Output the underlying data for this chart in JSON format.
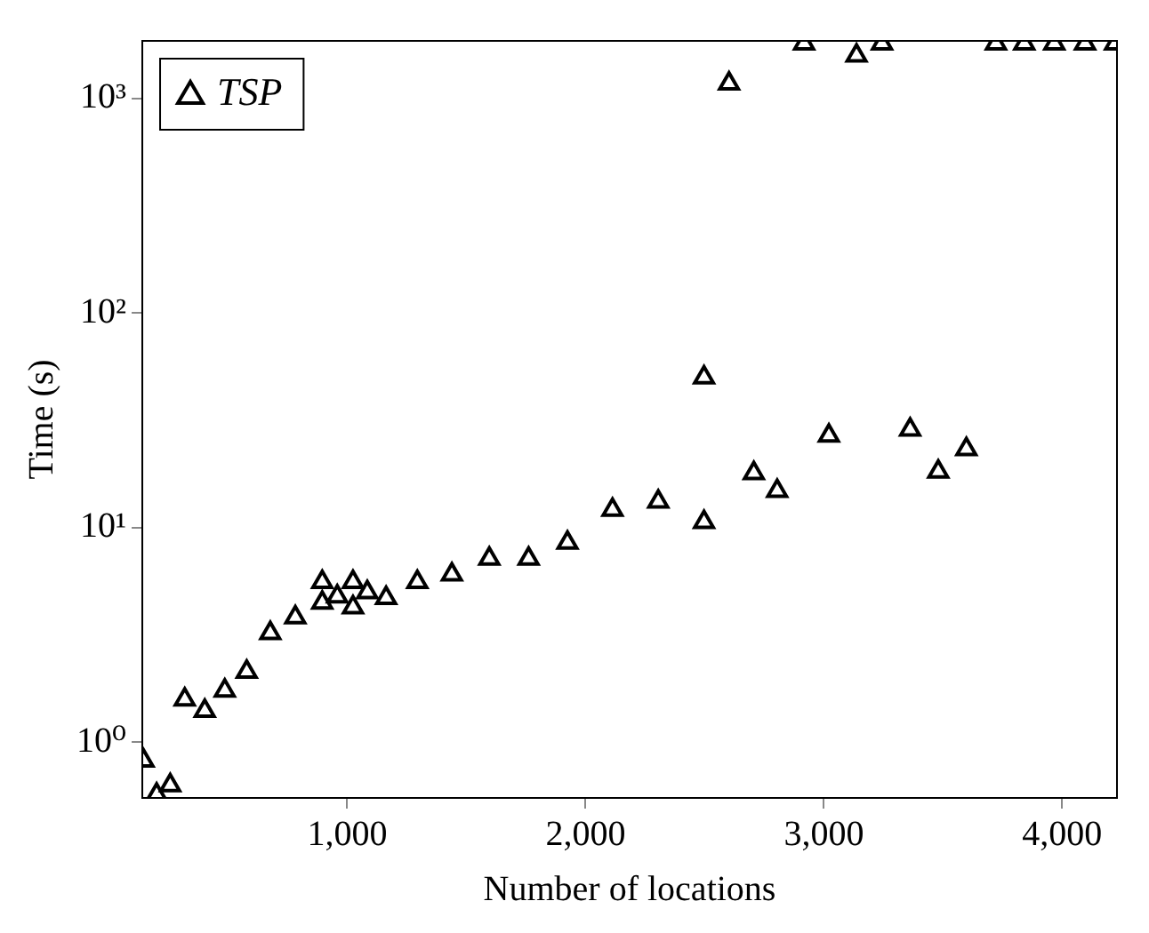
{
  "chart_data": {
    "type": "scatter",
    "xlabel": "Number of locations",
    "ylabel": "Time (s)",
    "series": [
      {
        "name": "TSP",
        "color": "#000000",
        "x": [
          145,
          200,
          257,
          318,
          402,
          486,
          578,
          677,
          782,
          895,
          895,
          958,
          1024,
          1024,
          1084,
          1163,
          1294,
          1439,
          1596,
          1761,
          1924,
          2113,
          2305,
          2497,
          2497,
          2602,
          2706,
          2804,
          2917,
          3021,
          3137,
          3244,
          3362,
          3480,
          3598,
          3722,
          3841,
          3967,
          4096,
          4222
        ],
        "values": [
          0.82,
          0.57,
          0.63,
          1.58,
          1.4,
          1.74,
          2.13,
          3.22,
          3.82,
          5.57,
          4.47,
          4.77,
          5.57,
          4.25,
          5.0,
          4.7,
          5.57,
          6.04,
          7.16,
          7.16,
          8.49,
          12.1,
          13.2,
          10.6,
          50,
          1170,
          17.9,
          14.8,
          1800,
          26.8,
          1580,
          1800,
          28.6,
          18.2,
          23.2,
          1800,
          1800,
          1800,
          1800,
          1800
        ]
      }
    ],
    "xlim": [
      140,
      4230
    ],
    "xticks": [
      {
        "value": 1000,
        "label": "1,000"
      },
      {
        "value": 2000,
        "label": "2,000"
      },
      {
        "value": 3000,
        "label": "3,000"
      },
      {
        "value": 4000,
        "label": "4,000"
      }
    ],
    "ylim": [
      0.55,
      1850
    ],
    "yticks": [
      {
        "value": 1,
        "label": "10⁰"
      },
      {
        "value": 10,
        "label": "10¹"
      },
      {
        "value": 100,
        "label": "10²"
      },
      {
        "value": 1000,
        "label": "10³"
      }
    ],
    "log": "y",
    "grid": false,
    "legend": "top left",
    "marker": "triangle"
  }
}
